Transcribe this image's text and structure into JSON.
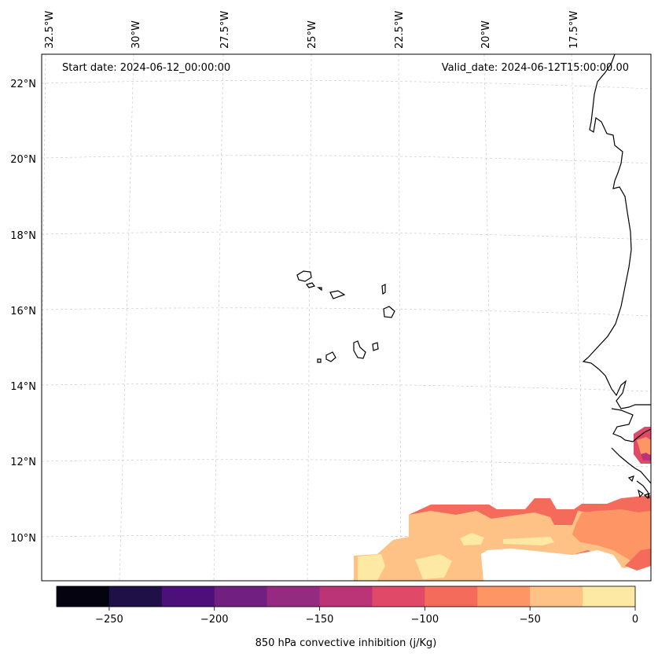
{
  "map": {
    "start_label": "Start date: 2024-06-12_00:00:00",
    "valid_label": "Valid_date: 2024-06-12T15:00:00.00",
    "lon_ticks": [
      "32.5°W",
      "30°W",
      "27.5°W",
      "25°W",
      "22.5°W",
      "20°W",
      "17.5°W"
    ],
    "lat_ticks": [
      "22°N",
      "20°N",
      "18°N",
      "16°N",
      "14°N",
      "12°N",
      "10°N"
    ],
    "extent": {
      "lon_min": -32.5,
      "lon_max": -15.3,
      "lat_min": 9.0,
      "lat_max": 22.7
    }
  },
  "colorbar": {
    "label": "850 hPa convective inhibition (j/Kg)",
    "levels": [
      -275,
      -250,
      -225,
      -200,
      -175,
      -150,
      -125,
      -100,
      -75,
      -50,
      -25,
      0
    ],
    "tick_values": [
      "−250",
      "−200",
      "−150",
      "−100",
      "−50",
      "0"
    ],
    "colors": [
      "#04030f",
      "#1f1147",
      "#4d0f7a",
      "#711f81",
      "#952b80",
      "#bc3478",
      "#e04a68",
      "#f46b5c",
      "#fd9564",
      "#fec186",
      "#fde8a4"
    ]
  },
  "fields": {
    "main_band": "#fec186",
    "north_edge": "#f46b5c",
    "east_patch": "#fd9564",
    "coast_patch": "#e04a68",
    "light_spots": "#fde8a4",
    "dark_spot": "#bc3478"
  }
}
